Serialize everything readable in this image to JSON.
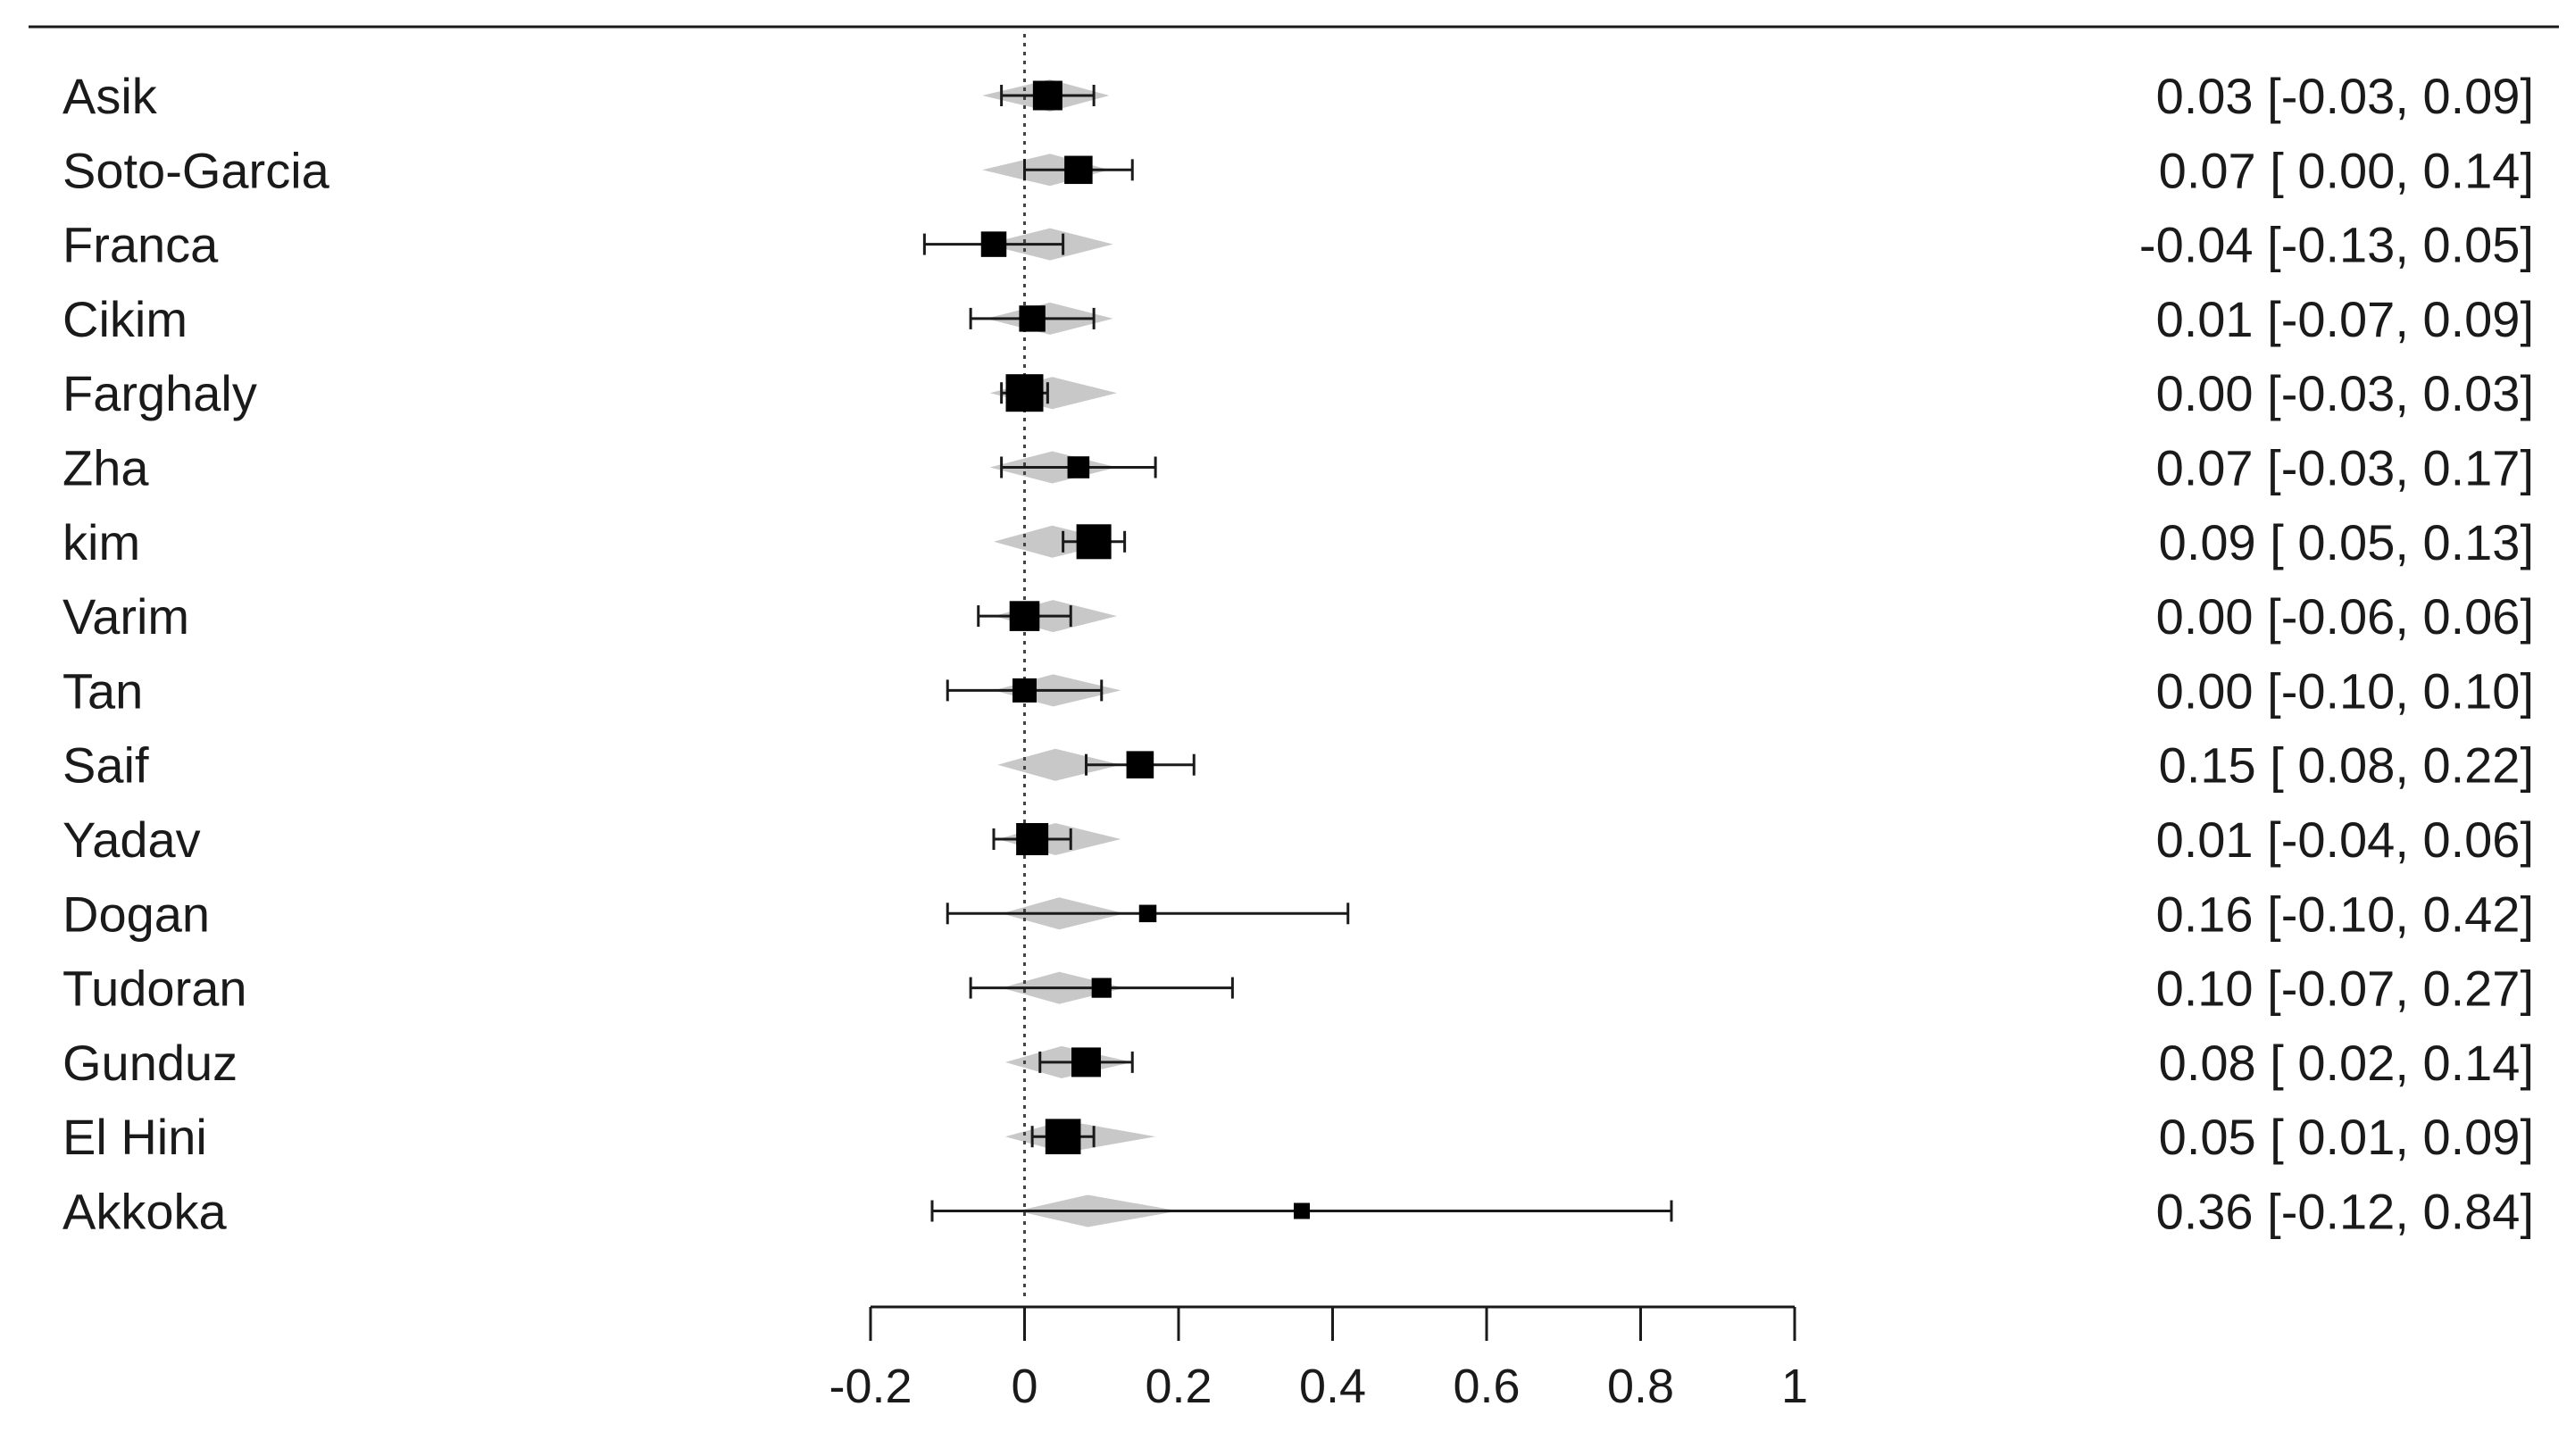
{
  "chart_data": {
    "type": "forest",
    "title": "",
    "xlabel": "",
    "ylabel": "",
    "xlim": [
      -0.2,
      1
    ],
    "ticks": [
      -0.2,
      0,
      0.2,
      0.4,
      0.6,
      0.8,
      1
    ],
    "tick_labels": [
      "-0.2",
      "0",
      "0.2",
      "0.4",
      "0.6",
      "0.8",
      "1"
    ],
    "reference_line": 0,
    "studies": [
      {
        "name": "Asik",
        "estimate": 0.03,
        "lower": -0.03,
        "upper": 0.09,
        "weight": 0.7,
        "ci_text": "0.03 [-0.03, 0.09]"
      },
      {
        "name": "Soto-Garcia",
        "estimate": 0.07,
        "lower": 0.0,
        "upper": 0.14,
        "weight": 0.65,
        "ci_text": "0.07 [ 0.00, 0.14]"
      },
      {
        "name": "Franca",
        "estimate": -0.04,
        "lower": -0.13,
        "upper": 0.05,
        "weight": 0.55,
        "ci_text": "-0.04 [-0.13, 0.05]"
      },
      {
        "name": "Cikim",
        "estimate": 0.01,
        "lower": -0.07,
        "upper": 0.09,
        "weight": 0.58,
        "ci_text": "0.01 [-0.07, 0.09]"
      },
      {
        "name": "Farghaly",
        "estimate": 0.0,
        "lower": -0.03,
        "upper": 0.03,
        "weight": 1.0,
        "ci_text": "0.00 [-0.03, 0.03]"
      },
      {
        "name": "Zha",
        "estimate": 0.07,
        "lower": -0.03,
        "upper": 0.17,
        "weight": 0.42,
        "ci_text": "0.07 [-0.03, 0.17]"
      },
      {
        "name": "kim",
        "estimate": 0.09,
        "lower": 0.05,
        "upper": 0.13,
        "weight": 0.9,
        "ci_text": "0.09 [ 0.05, 0.13]"
      },
      {
        "name": "Varim",
        "estimate": 0.0,
        "lower": -0.06,
        "upper": 0.06,
        "weight": 0.72,
        "ci_text": "0.00 [-0.06, 0.06]"
      },
      {
        "name": "Tan",
        "estimate": 0.0,
        "lower": -0.1,
        "upper": 0.1,
        "weight": 0.5,
        "ci_text": "0.00 [-0.10, 0.10]"
      },
      {
        "name": "Saif",
        "estimate": 0.15,
        "lower": 0.08,
        "upper": 0.22,
        "weight": 0.62,
        "ci_text": "0.15 [ 0.08, 0.22]"
      },
      {
        "name": "Yadav",
        "estimate": 0.01,
        "lower": -0.04,
        "upper": 0.06,
        "weight": 0.8,
        "ci_text": "0.01 [-0.04, 0.06]"
      },
      {
        "name": "Dogan",
        "estimate": 0.16,
        "lower": -0.1,
        "upper": 0.42,
        "weight": 0.25,
        "ci_text": "0.16 [-0.10, 0.42]"
      },
      {
        "name": "Tudoran",
        "estimate": 0.1,
        "lower": -0.07,
        "upper": 0.27,
        "weight": 0.34,
        "ci_text": "0.10 [-0.07, 0.27]"
      },
      {
        "name": "Gunduz",
        "estimate": 0.08,
        "lower": 0.02,
        "upper": 0.14,
        "weight": 0.7,
        "ci_text": "0.08 [ 0.02, 0.14]"
      },
      {
        "name": "El Hini",
        "estimate": 0.05,
        "lower": 0.01,
        "upper": 0.09,
        "weight": 0.92,
        "ci_text": "0.05 [ 0.01, 0.09]"
      },
      {
        "name": "Akkoka",
        "estimate": 0.36,
        "lower": -0.12,
        "upper": 0.84,
        "weight": 0.2,
        "ci_text": "0.36 [-0.12, 0.84]"
      }
    ],
    "prediction_diamonds": [
      {
        "center": 0.033,
        "lower": -0.055,
        "upper": 0.11
      },
      {
        "center": 0.033,
        "lower": -0.055,
        "upper": 0.11
      },
      {
        "center": 0.033,
        "lower": -0.05,
        "upper": 0.115
      },
      {
        "center": 0.033,
        "lower": -0.05,
        "upper": 0.115
      },
      {
        "center": 0.036,
        "lower": -0.045,
        "upper": 0.12
      },
      {
        "center": 0.036,
        "lower": -0.045,
        "upper": 0.12
      },
      {
        "center": 0.036,
        "lower": -0.04,
        "upper": 0.12
      },
      {
        "center": 0.037,
        "lower": -0.04,
        "upper": 0.12
      },
      {
        "center": 0.037,
        "lower": -0.04,
        "upper": 0.125
      },
      {
        "center": 0.04,
        "lower": -0.035,
        "upper": 0.125
      },
      {
        "center": 0.04,
        "lower": -0.035,
        "upper": 0.125
      },
      {
        "center": 0.045,
        "lower": -0.03,
        "upper": 0.13
      },
      {
        "center": 0.045,
        "lower": -0.03,
        "upper": 0.13
      },
      {
        "center": 0.048,
        "lower": -0.025,
        "upper": 0.14
      },
      {
        "center": 0.052,
        "lower": -0.025,
        "upper": 0.17
      },
      {
        "center": 0.082,
        "lower": -0.01,
        "upper": 0.2
      }
    ],
    "colors": {
      "marker": "#000000",
      "diamond": "#c8c8c8",
      "line": "#1a1a1a"
    }
  }
}
